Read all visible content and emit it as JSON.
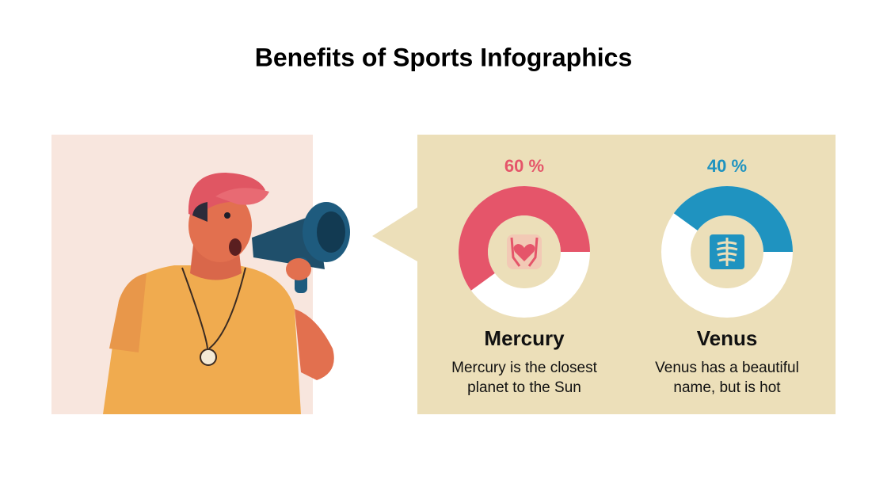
{
  "title": "Benefits of Sports Infographics",
  "chart_data": [
    {
      "type": "donut",
      "title": "Mercury",
      "description": "Mercury is the closest planet to the Sun",
      "values": [
        60
      ],
      "value_labels": [
        "60 %"
      ],
      "color": "#e5556a"
    },
    {
      "type": "donut",
      "title": "Venus",
      "description": "Venus has a beautiful name, but is hot",
      "values": [
        40
      ],
      "value_labels": [
        "40 %"
      ],
      "color": "#1f93c0"
    }
  ]
}
